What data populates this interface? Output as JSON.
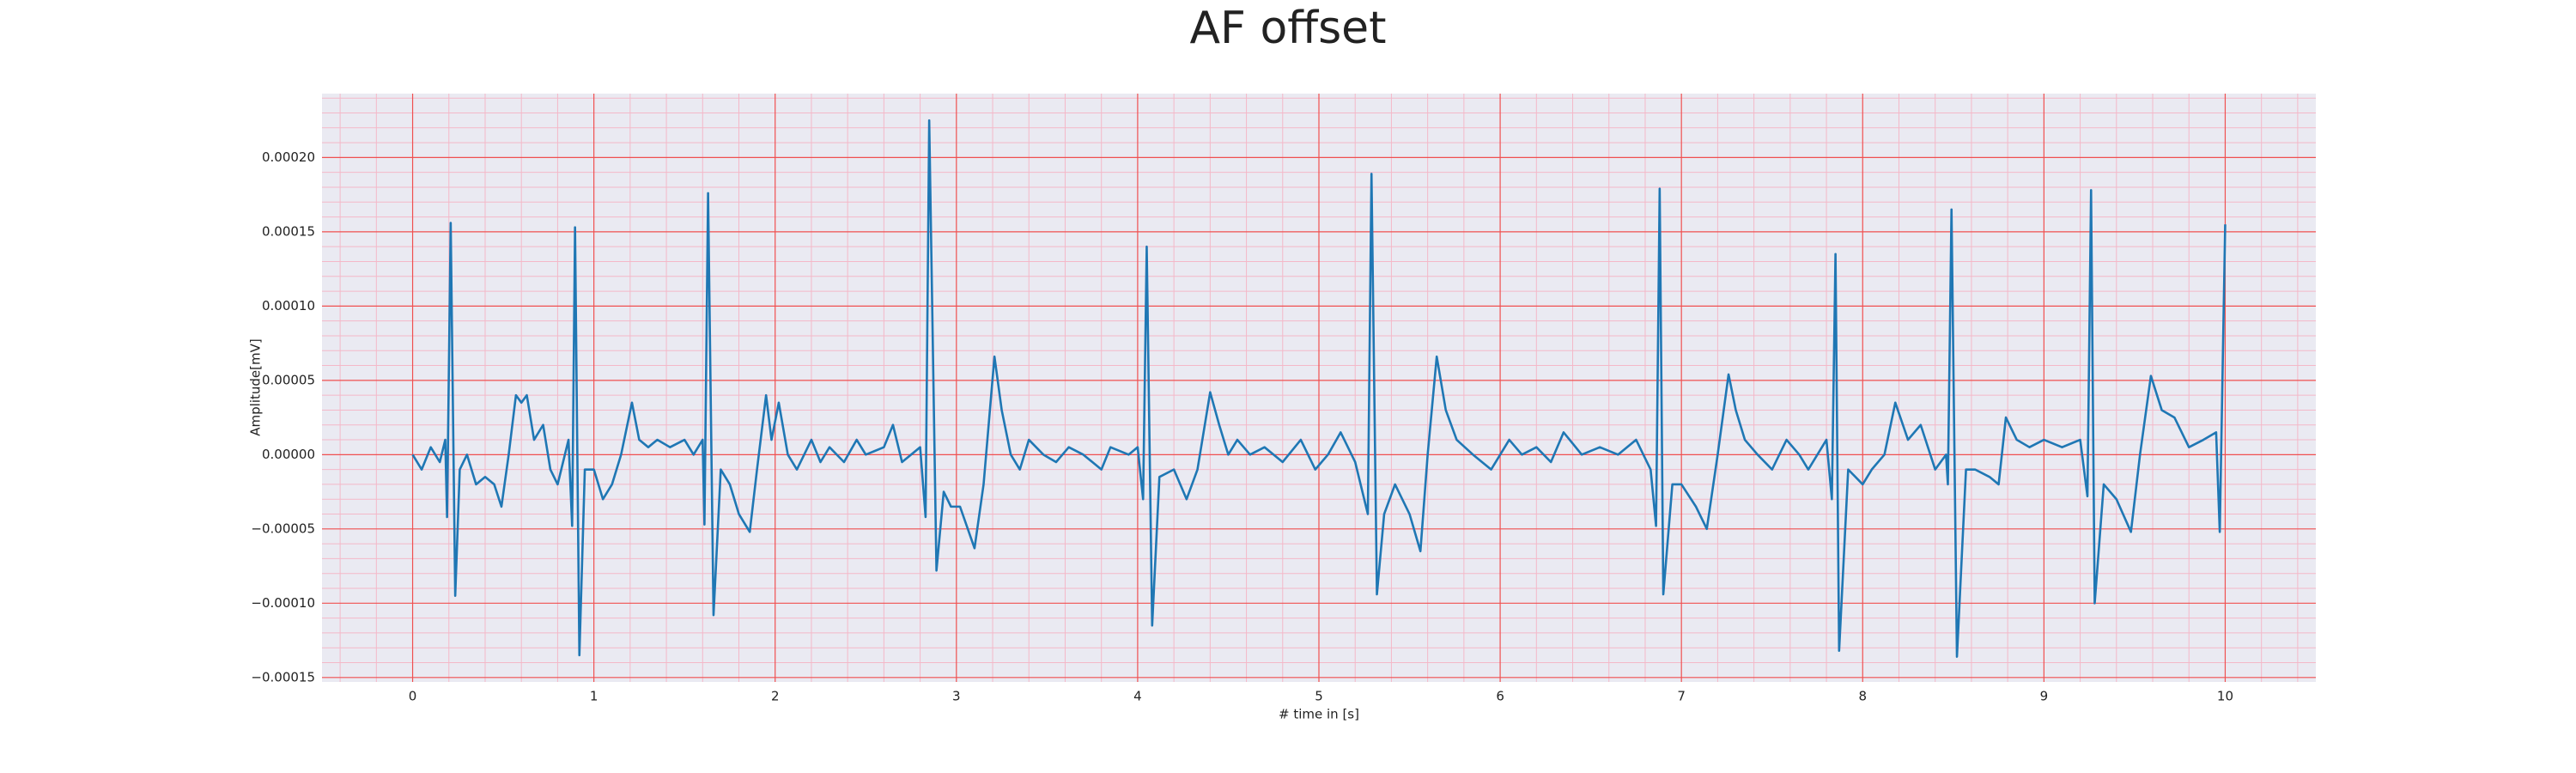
{
  "chart_data": {
    "type": "line",
    "title": "AF offset",
    "xlabel": "# time in [s]",
    "ylabel": "Amplitude[mV]",
    "color": "#1f77b4",
    "grid": true,
    "minor_grid": true,
    "minor_divisions": 5,
    "xlim": [
      -0.5,
      10.5
    ],
    "xticks": [
      0,
      1,
      2,
      3,
      4,
      5,
      6,
      7,
      8,
      9,
      10
    ],
    "ylim": [
      -0.000153,
      0.000243
    ],
    "yticks": [
      {
        "value": -0.00015,
        "label": "−0.00015"
      },
      {
        "value": -0.0001,
        "label": "−0.00010"
      },
      {
        "value": -5e-05,
        "label": "−0.00005"
      },
      {
        "value": 0,
        "label": "0.00000"
      },
      {
        "value": 5e-05,
        "label": "0.00005"
      },
      {
        "value": 0.0001,
        "label": "0.00010"
      },
      {
        "value": 0.00015,
        "label": "0.00015"
      },
      {
        "value": 0.0002,
        "label": "0.00020"
      }
    ],
    "x": [
      0,
      0.05,
      0.1,
      0.15,
      0.18,
      0.19,
      0.21,
      0.235,
      0.26,
      0.3,
      0.35,
      0.4,
      0.45,
      0.49,
      0.53,
      0.57,
      0.6,
      0.63,
      0.67,
      0.72,
      0.76,
      0.8,
      0.86,
      0.88,
      0.896,
      0.92,
      0.95,
      1.0,
      1.05,
      1.1,
      1.15,
      1.21,
      1.25,
      1.3,
      1.35,
      1.42,
      1.5,
      1.55,
      1.6,
      1.61,
      1.63,
      1.66,
      1.7,
      1.75,
      1.8,
      1.86,
      1.9,
      1.95,
      1.98,
      2.02,
      2.07,
      2.12,
      2.2,
      2.25,
      2.3,
      2.38,
      2.45,
      2.5,
      2.6,
      2.65,
      2.7,
      2.8,
      2.83,
      2.85,
      2.89,
      2.93,
      2.97,
      3.02,
      3.1,
      3.15,
      3.21,
      3.25,
      3.3,
      3.35,
      3.4,
      3.48,
      3.55,
      3.62,
      3.7,
      3.8,
      3.85,
      3.95,
      4.0,
      4.03,
      4.05,
      4.08,
      4.12,
      4.2,
      4.27,
      4.33,
      4.4,
      4.45,
      4.5,
      4.55,
      4.62,
      4.7,
      4.8,
      4.9,
      4.98,
      5.05,
      5.12,
      5.2,
      5.27,
      5.29,
      5.32,
      5.36,
      5.42,
      5.5,
      5.56,
      5.6,
      5.65,
      5.7,
      5.76,
      5.85,
      5.95,
      6.05,
      6.12,
      6.2,
      6.28,
      6.35,
      6.45,
      6.55,
      6.65,
      6.75,
      6.83,
      6.86,
      6.88,
      6.9,
      6.95,
      7.0,
      7.08,
      7.14,
      7.2,
      7.26,
      7.3,
      7.35,
      7.42,
      7.5,
      7.58,
      7.65,
      7.7,
      7.8,
      7.83,
      7.85,
      7.87,
      7.92,
      8.0,
      8.05,
      8.12,
      8.18,
      8.25,
      8.32,
      8.4,
      8.46,
      8.47,
      8.49,
      8.52,
      8.57,
      8.62,
      8.7,
      8.75,
      8.79,
      8.85,
      8.92,
      9.0,
      9.1,
      9.2,
      9.24,
      9.26,
      9.28,
      9.33,
      9.4,
      9.48,
      9.53,
      9.59,
      9.65,
      9.72,
      9.8,
      9.88,
      9.95,
      9.97,
      10.0
    ],
    "values": [
      0,
      -1e-05,
      5e-06,
      -5e-06,
      1e-05,
      -4.2e-05,
      0.000156,
      -9.5e-05,
      -1e-05,
      0,
      -2e-05,
      -1.5e-05,
      -2e-05,
      -3.5e-05,
      0,
      4e-05,
      3.5e-05,
      4e-05,
      1e-05,
      2e-05,
      -1e-05,
      -2e-05,
      1e-05,
      -4.8e-05,
      0.000153,
      -0.000135,
      -1e-05,
      -1e-05,
      -3e-05,
      -2e-05,
      0,
      3.5e-05,
      1e-05,
      5e-06,
      1e-05,
      5e-06,
      1e-05,
      0,
      1e-05,
      -4.7e-05,
      0.000176,
      -0.000108,
      -1e-05,
      -2e-05,
      -4e-05,
      -5.2e-05,
      -1e-05,
      4e-05,
      1e-05,
      3.5e-05,
      0,
      -1e-05,
      1e-05,
      -5e-06,
      5e-06,
      -5e-06,
      1e-05,
      0,
      5e-06,
      2e-05,
      -5e-06,
      5e-06,
      -4.2e-05,
      0.000225,
      -7.8e-05,
      -2.5e-05,
      -3.5e-05,
      -3.5e-05,
      -6.3e-05,
      -2e-05,
      6.6e-05,
      3e-05,
      0,
      -1e-05,
      1e-05,
      0,
      -5e-06,
      5e-06,
      0,
      -1e-05,
      5e-06,
      0,
      5e-06,
      -3e-05,
      0.00014,
      -0.000115,
      -1.5e-05,
      -1e-05,
      -3e-05,
      -1e-05,
      4.2e-05,
      2e-05,
      0,
      1e-05,
      0,
      5e-06,
      -5e-06,
      1e-05,
      -1e-05,
      0,
      1.5e-05,
      -5e-06,
      -4e-05,
      0.000189,
      -9.4e-05,
      -4e-05,
      -2e-05,
      -4e-05,
      -6.5e-05,
      0,
      6.6e-05,
      3e-05,
      1e-05,
      0,
      -1e-05,
      1e-05,
      0,
      5e-06,
      -5e-06,
      1.5e-05,
      0,
      5e-06,
      0,
      1e-05,
      -1e-05,
      -4.8e-05,
      0.000179,
      -9.4e-05,
      -2e-05,
      -2e-05,
      -3.5e-05,
      -5e-05,
      0,
      5.4e-05,
      3e-05,
      1e-05,
      0,
      -1e-05,
      1e-05,
      0,
      -1e-05,
      1e-05,
      -3e-05,
      0.000135,
      -0.000132,
      -1e-05,
      -2e-05,
      -1e-05,
      0,
      3.5e-05,
      1e-05,
      2e-05,
      -1e-05,
      0,
      -2e-05,
      0.000165,
      -0.000136,
      -1e-05,
      -1e-05,
      -1.5e-05,
      -2e-05,
      2.5e-05,
      1e-05,
      5e-06,
      1e-05,
      5e-06,
      1e-05,
      -2.8e-05,
      0.000178,
      -0.0001,
      -2e-05,
      -3e-05,
      -5.2e-05,
      0,
      5.3e-05,
      3e-05,
      2.5e-05,
      5e-06,
      1e-05,
      1.5e-05,
      -5.2e-05,
      0.000155
    ]
  }
}
